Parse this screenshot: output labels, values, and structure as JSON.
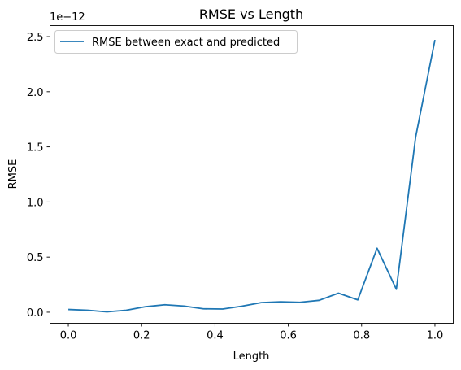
{
  "chart_data": {
    "type": "line",
    "title": "RMSE vs Length",
    "xlabel": "Length",
    "ylabel": "RMSE",
    "y_offset_label": "1e−12",
    "xlim": [
      -0.05,
      1.05
    ],
    "ylim": [
      -0.1,
      2.6
    ],
    "x_ticks": [
      0.0,
      0.2,
      0.4,
      0.6,
      0.8,
      1.0
    ],
    "x_tick_labels": [
      "0.0",
      "0.2",
      "0.4",
      "0.6",
      "0.8",
      "1.0"
    ],
    "y_ticks": [
      0.0,
      0.5,
      1.0,
      1.5,
      2.0,
      2.5
    ],
    "y_tick_labels": [
      "0.0",
      "0.5",
      "1.0",
      "1.5",
      "2.0",
      "2.5"
    ],
    "grid": false,
    "legend_position": "top-left",
    "color": "#1f77b4",
    "series": [
      {
        "name": "RMSE between exact and predicted",
        "x": [
          0.0,
          0.0526,
          0.1053,
          0.1579,
          0.2105,
          0.2632,
          0.3158,
          0.3684,
          0.4211,
          0.4737,
          0.5263,
          0.5789,
          0.6316,
          0.6842,
          0.7368,
          0.7895,
          0.8421,
          0.8947,
          0.9474,
          1.0
        ],
        "y": [
          0.025,
          0.018,
          0.003,
          0.018,
          0.05,
          0.068,
          0.056,
          0.031,
          0.029,
          0.055,
          0.087,
          0.094,
          0.09,
          0.108,
          0.173,
          0.112,
          0.58,
          0.208,
          1.59,
          2.47
        ]
      }
    ]
  }
}
